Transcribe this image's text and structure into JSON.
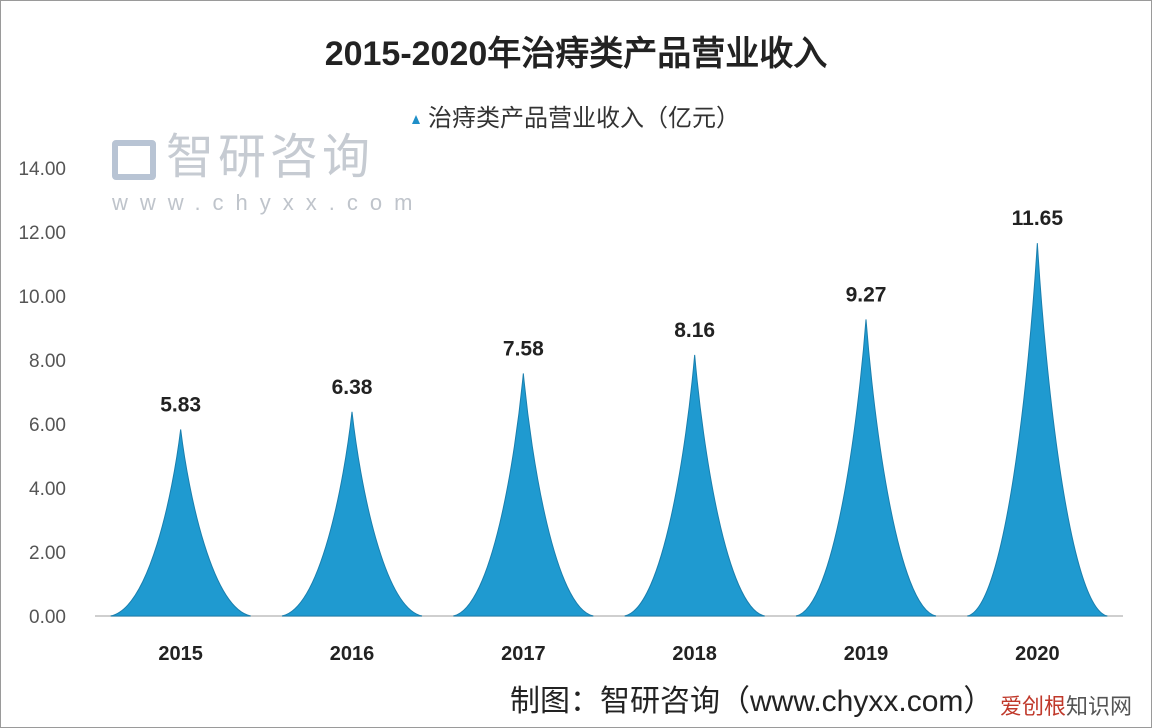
{
  "chart_data": {
    "type": "area",
    "title": "2015-2020年治痔类产品营业收入",
    "legend": {
      "entries": [
        "治痔类产品营业收入（亿元）"
      ],
      "placement": "top"
    },
    "categories": [
      "2015",
      "2016",
      "2017",
      "2018",
      "2019",
      "2020"
    ],
    "series": [
      {
        "name": "治痔类产品营业收入（亿元）",
        "values": [
          5.83,
          6.38,
          7.58,
          8.16,
          9.27,
          11.65
        ]
      }
    ],
    "data_labels": [
      "5.83",
      "6.38",
      "7.58",
      "8.16",
      "9.27",
      "11.65"
    ],
    "ylim": [
      0,
      14
    ],
    "yticks": [
      "0.00",
      "2.00",
      "4.00",
      "6.00",
      "8.00",
      "10.00",
      "12.00",
      "14.00"
    ],
    "grid": false,
    "mark_shape": "peak",
    "color": "#1f9ad0"
  },
  "watermark": {
    "name": "智研咨询",
    "url": "www.chyxx.com"
  },
  "credit": "制图：智研咨询（www.chyxx.com）",
  "overlay_site": {
    "part1": "爱创根",
    "part2": "知识网"
  }
}
